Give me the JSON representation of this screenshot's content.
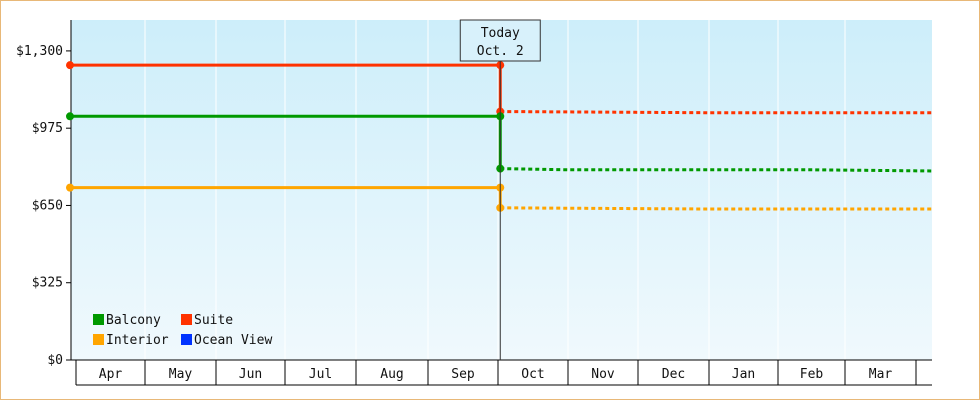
{
  "chart_data": {
    "type": "line",
    "title": "",
    "xlabel": "",
    "ylabel": "",
    "x_axis": {
      "type": "month-date",
      "range": [
        "Apr 1",
        "Mar 31"
      ],
      "ticks": [
        "Apr",
        "May",
        "Jun",
        "Jul",
        "Aug",
        "Sep",
        "Oct",
        "Nov",
        "Dec",
        "Jan",
        "Feb",
        "Mar"
      ]
    },
    "y_axis": {
      "range": [
        0,
        1430
      ],
      "ticks": [
        0,
        325,
        650,
        975,
        1300
      ],
      "tick_labels": [
        "$0",
        "$325",
        "$650",
        "$975",
        "$1,300"
      ]
    },
    "grid": {
      "x": true,
      "y": false
    },
    "background": {
      "top": "#cdeefa",
      "bottom": "#f0f9fd"
    },
    "today_marker": {
      "line1": "Today",
      "line2": "Oct. 2",
      "date": "Oct 2"
    },
    "legend": {
      "placement": "bottom-left",
      "items": [
        {
          "label": "Balcony",
          "color": "#009900"
        },
        {
          "label": "Suite",
          "color": "#ff3300"
        },
        {
          "label": "Interior",
          "color": "#ffa500"
        },
        {
          "label": "Ocean View",
          "color": "#0033ff"
        }
      ]
    },
    "series": [
      {
        "name": "Suite",
        "color": "#ff3300",
        "history": {
          "x": [
            "Apr 1",
            "Oct 2"
          ],
          "y": [
            1240,
            1240
          ]
        },
        "drop": {
          "x": "Oct 2",
          "y": [
            1240,
            1045
          ]
        },
        "forecast": {
          "x": [
            "Oct 2",
            "Jan 1",
            "Mar 31"
          ],
          "y": [
            1045,
            1040,
            1040
          ]
        }
      },
      {
        "name": "Balcony",
        "color": "#009900",
        "history": {
          "x": [
            "Apr 1",
            "Oct 2"
          ],
          "y": [
            1025,
            1025
          ]
        },
        "drop": {
          "x": "Oct 2",
          "y": [
            1025,
            805
          ]
        },
        "forecast": {
          "x": [
            "Oct 2",
            "Nov 1",
            "Feb 15",
            "Mar 31"
          ],
          "y": [
            805,
            800,
            800,
            795
          ]
        }
      },
      {
        "name": "Interior",
        "color": "#ffa500",
        "history": {
          "x": [
            "Apr 1",
            "Oct 2"
          ],
          "y": [
            725,
            725
          ]
        },
        "drop": {
          "x": "Oct 2",
          "y": [
            725,
            640
          ]
        },
        "forecast": {
          "x": [
            "Oct 2",
            "Jan 1",
            "Mar 31"
          ],
          "y": [
            640,
            635,
            635
          ]
        }
      }
    ]
  }
}
